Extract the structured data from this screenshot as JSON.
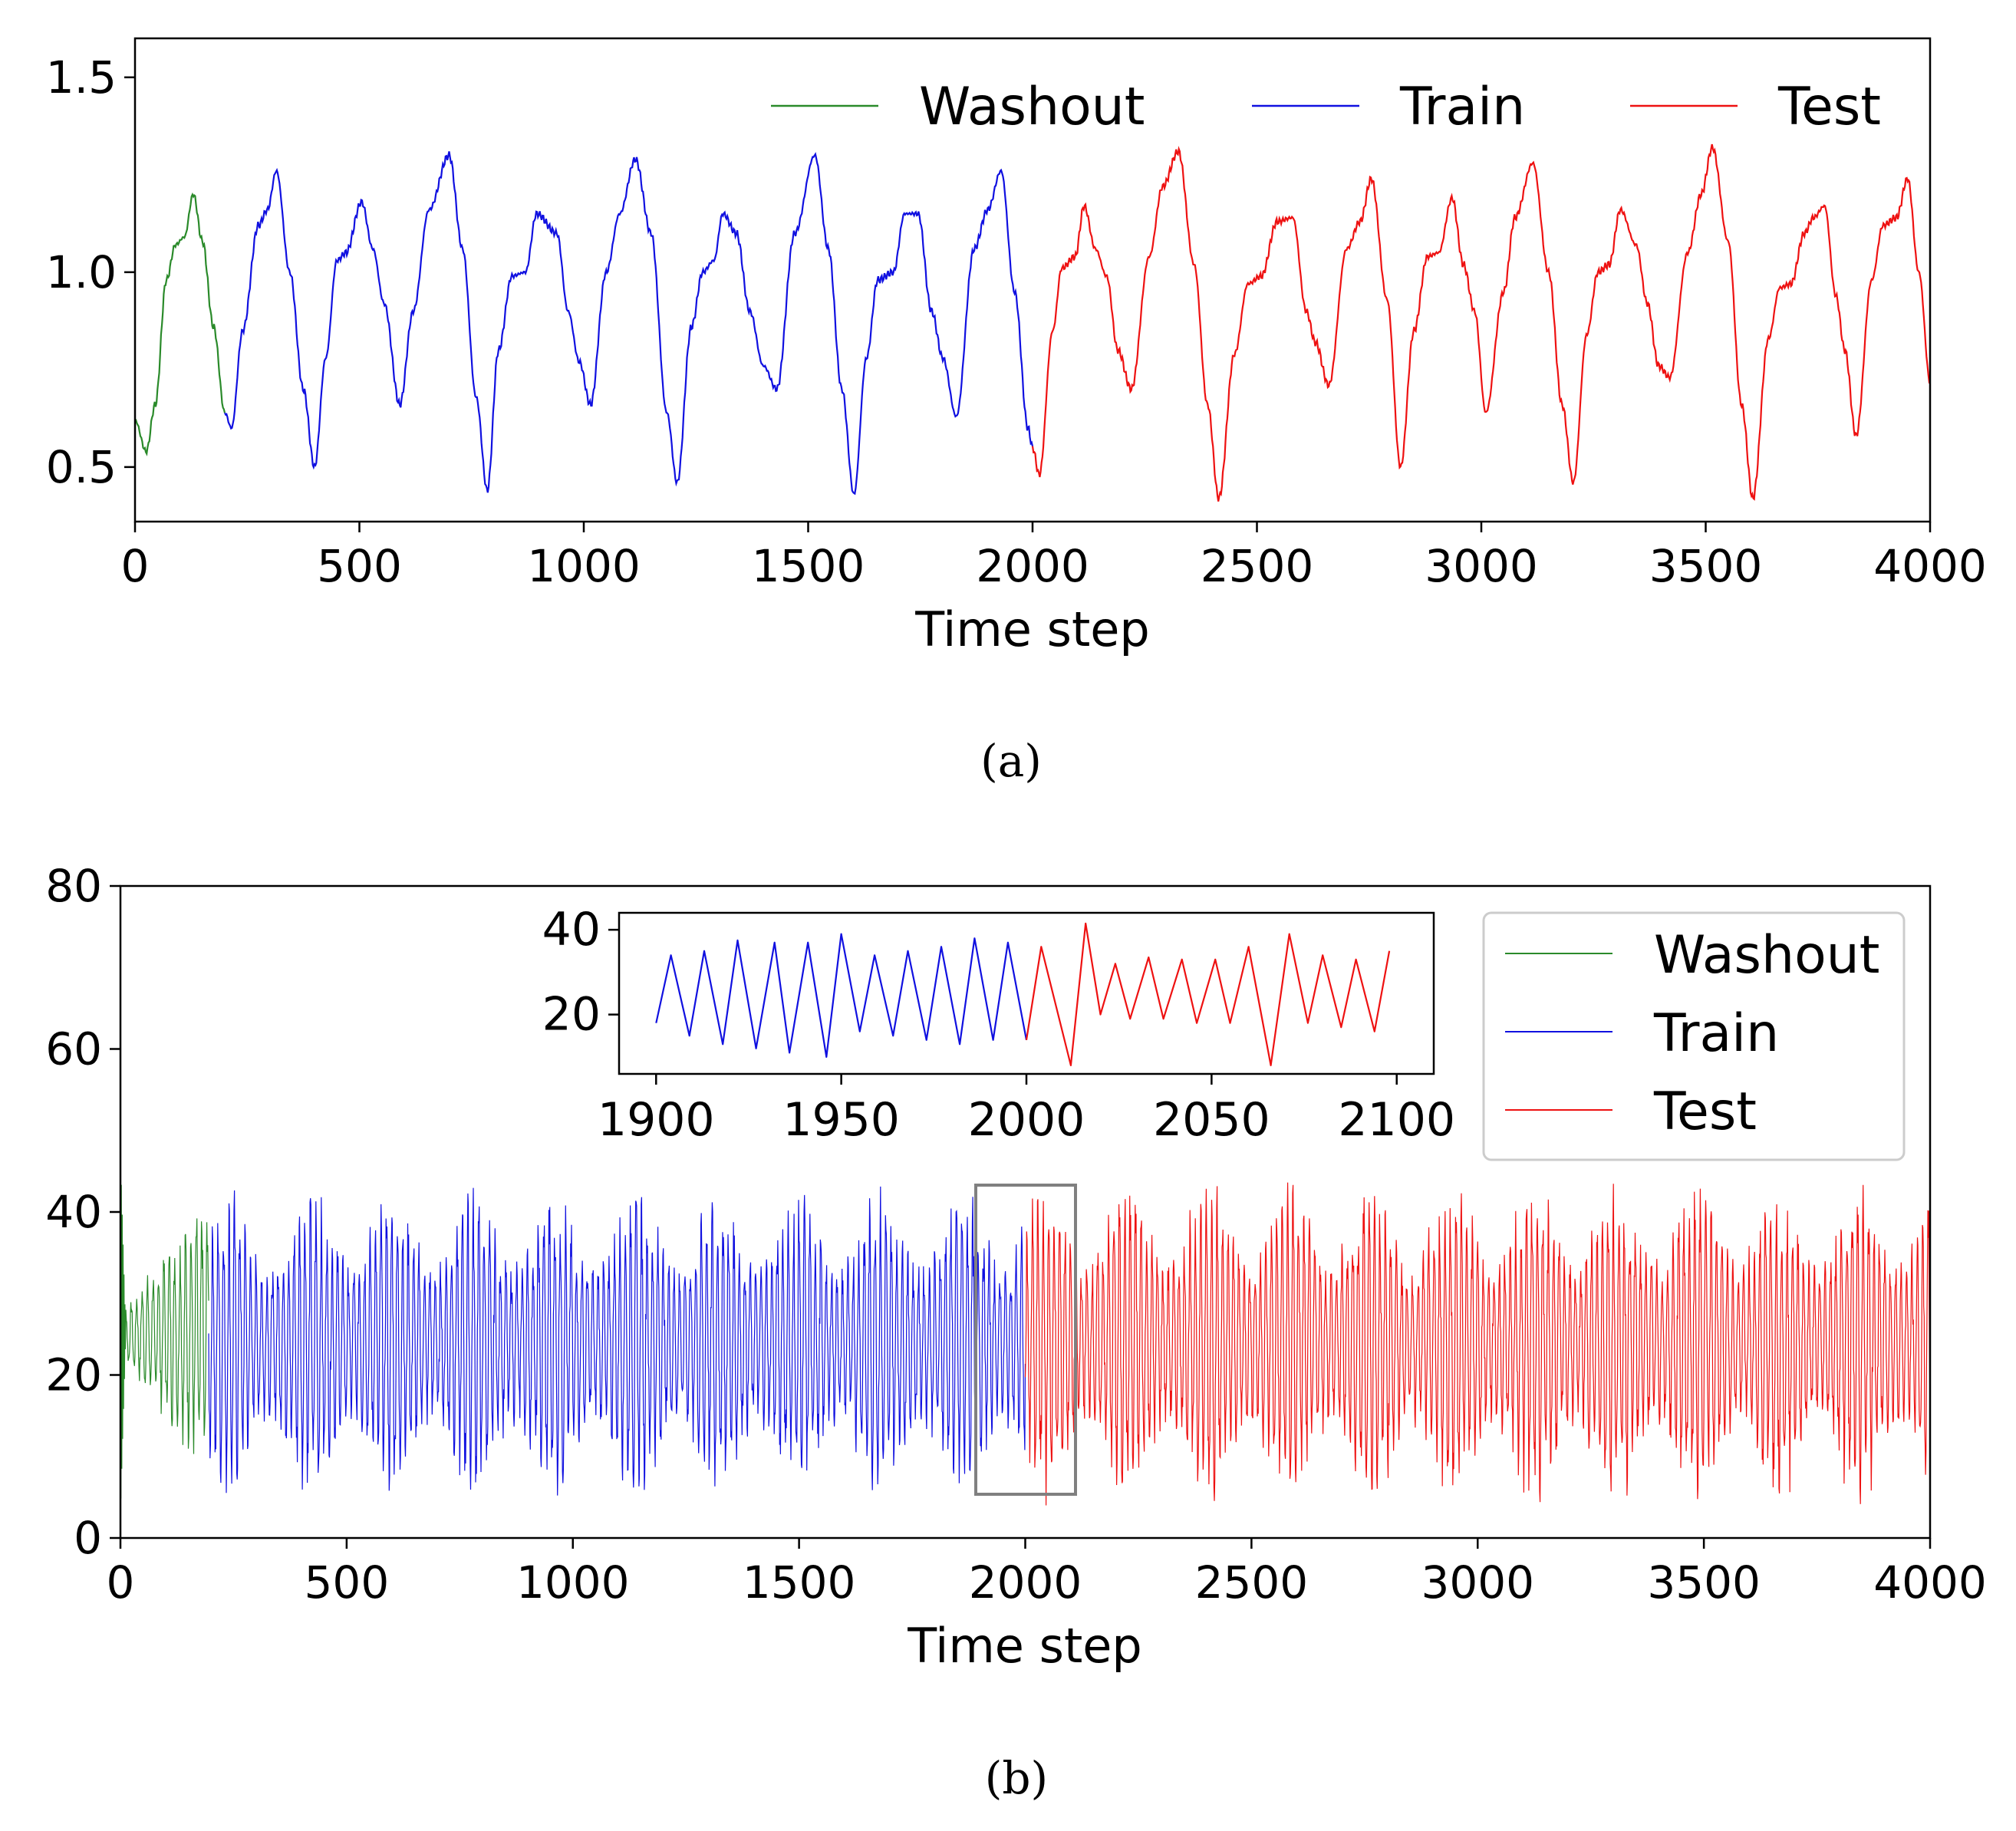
{
  "captions": {
    "a": "(a)",
    "b": "(b)"
  },
  "colors": {
    "washout": "#2a8a2a",
    "train": "#1010e0",
    "test": "#ee1111",
    "zoom_box": "#808080"
  },
  "chart_data": [
    {
      "id": "a",
      "type": "line",
      "xlabel": "Time step",
      "ylabel": "",
      "xlim": [
        0,
        4000
      ],
      "ylim": [
        0.36,
        1.6
      ],
      "xticks": [
        0,
        500,
        1000,
        1500,
        2000,
        2500,
        3000,
        3500,
        4000
      ],
      "xtick_labels": [
        "0",
        "500",
        "1000",
        "1500",
        "2000",
        "2500",
        "3000",
        "3500",
        "4000"
      ],
      "yticks": [
        0.5,
        1.0,
        1.5
      ],
      "ytick_labels": [
        "0.5",
        "1.0",
        "1.5"
      ],
      "legend": {
        "placement": "top-right",
        "columns": 3,
        "entries": [
          "Washout",
          "Train",
          "Test"
        ]
      },
      "series": [
        {
          "name": "Washout",
          "x_range": [
            0,
            200
          ],
          "keypoints": [
            [
              0,
              0.62
            ],
            [
              25,
              0.54
            ],
            [
              45,
              0.66
            ],
            [
              70,
              0.98
            ],
            [
              90,
              1.07
            ],
            [
              110,
              1.09
            ],
            [
              130,
              1.2
            ],
            [
              150,
              1.08
            ],
            [
              175,
              0.86
            ],
            [
              200,
              0.64
            ]
          ]
        },
        {
          "name": "Train",
          "x_range": [
            200,
            2000
          ],
          "keypoints": [
            [
              200,
              0.64
            ],
            [
              215,
              0.6
            ],
            [
              240,
              0.85
            ],
            [
              275,
              1.12
            ],
            [
              295,
              1.16
            ],
            [
              315,
              1.26
            ],
            [
              345,
              1.0
            ],
            [
              375,
              0.7
            ],
            [
              400,
              0.5
            ],
            [
              425,
              0.78
            ],
            [
              450,
              1.03
            ],
            [
              470,
              1.05
            ],
            [
              505,
              1.18
            ],
            [
              530,
              1.06
            ],
            [
              555,
              0.92
            ],
            [
              590,
              0.66
            ],
            [
              620,
              0.9
            ],
            [
              655,
              1.16
            ],
            [
              700,
              1.3
            ],
            [
              730,
              1.06
            ],
            [
              760,
              0.68
            ],
            [
              785,
              0.44
            ],
            [
              810,
              0.8
            ],
            [
              840,
              0.99
            ],
            [
              870,
              1.0
            ],
            [
              895,
              1.15
            ],
            [
              940,
              1.1
            ],
            [
              965,
              0.9
            ],
            [
              990,
              0.77
            ],
            [
              1015,
              0.66
            ],
            [
              1050,
              1.0
            ],
            [
              1080,
              1.15
            ],
            [
              1115,
              1.29
            ],
            [
              1150,
              1.1
            ],
            [
              1185,
              0.64
            ],
            [
              1208,
              0.46
            ],
            [
              1240,
              0.86
            ],
            [
              1265,
              1.0
            ],
            [
              1290,
              1.03
            ],
            [
              1310,
              1.15
            ],
            [
              1340,
              1.1
            ],
            [
              1370,
              0.9
            ],
            [
              1400,
              0.76
            ],
            [
              1430,
              0.7
            ],
            [
              1470,
              1.1
            ],
            [
              1515,
              1.3
            ],
            [
              1545,
              1.06
            ],
            [
              1575,
              0.7
            ],
            [
              1602,
              0.43
            ],
            [
              1630,
              0.78
            ],
            [
              1655,
              0.98
            ],
            [
              1690,
              1.0
            ],
            [
              1715,
              1.15
            ],
            [
              1745,
              1.15
            ],
            [
              1775,
              0.9
            ],
            [
              1800,
              0.78
            ],
            [
              1830,
              0.63
            ],
            [
              1870,
              1.06
            ],
            [
              1900,
              1.16
            ],
            [
              1930,
              1.26
            ],
            [
              1960,
              0.95
            ],
            [
              1990,
              0.6
            ],
            [
              2000,
              0.55
            ]
          ]
        },
        {
          "name": "Test",
          "x_range": [
            2000,
            4000
          ],
          "keypoints": [
            [
              2000,
              0.55
            ],
            [
              2015,
              0.48
            ],
            [
              2045,
              0.85
            ],
            [
              2065,
              1.01
            ],
            [
              2095,
              1.04
            ],
            [
              2115,
              1.17
            ],
            [
              2140,
              1.06
            ],
            [
              2165,
              0.99
            ],
            [
              2190,
              0.8
            ],
            [
              2220,
              0.7
            ],
            [
              2260,
              1.04
            ],
            [
              2290,
              1.22
            ],
            [
              2325,
              1.31
            ],
            [
              2360,
              1.02
            ],
            [
              2390,
              0.66
            ],
            [
              2415,
              0.42
            ],
            [
              2450,
              0.79
            ],
            [
              2480,
              0.97
            ],
            [
              2510,
              0.99
            ],
            [
              2545,
              1.13
            ],
            [
              2580,
              1.14
            ],
            [
              2610,
              0.9
            ],
            [
              2630,
              0.82
            ],
            [
              2660,
              0.71
            ],
            [
              2700,
              1.06
            ],
            [
              2730,
              1.13
            ],
            [
              2755,
              1.24
            ],
            [
              2790,
              0.93
            ],
            [
              2820,
              0.5
            ],
            [
              2850,
              0.85
            ],
            [
              2880,
              1.04
            ],
            [
              2905,
              1.05
            ],
            [
              2935,
              1.19
            ],
            [
              2960,
              1.02
            ],
            [
              2985,
              0.9
            ],
            [
              3010,
              0.64
            ],
            [
              3050,
              0.95
            ],
            [
              3075,
              1.14
            ],
            [
              3115,
              1.28
            ],
            [
              3150,
              1.0
            ],
            [
              3180,
              0.66
            ],
            [
              3205,
              0.46
            ],
            [
              3235,
              0.84
            ],
            [
              3260,
              1.0
            ],
            [
              3285,
              1.02
            ],
            [
              3310,
              1.16
            ],
            [
              3345,
              1.07
            ],
            [
              3370,
              0.92
            ],
            [
              3395,
              0.76
            ],
            [
              3420,
              0.73
            ],
            [
              3460,
              1.05
            ],
            [
              3490,
              1.2
            ],
            [
              3515,
              1.32
            ],
            [
              3550,
              1.08
            ],
            [
              3580,
              0.66
            ],
            [
              3605,
              0.42
            ],
            [
              3640,
              0.83
            ],
            [
              3665,
              0.96
            ],
            [
              3690,
              0.97
            ],
            [
              3720,
              1.1
            ],
            [
              3740,
              1.14
            ],
            [
              3765,
              1.17
            ],
            [
              3790,
              0.94
            ],
            [
              3810,
              0.8
            ],
            [
              3835,
              0.58
            ],
            [
              3870,
              0.98
            ],
            [
              3895,
              1.12
            ],
            [
              3925,
              1.14
            ],
            [
              3950,
              1.24
            ],
            [
              3975,
              1.0
            ],
            [
              4000,
              0.72
            ]
          ]
        }
      ]
    },
    {
      "id": "b",
      "type": "line",
      "xlabel": "Time step",
      "ylabel": "",
      "xlim": [
        0,
        4000
      ],
      "ylim": [
        0,
        80
      ],
      "xticks": [
        0,
        500,
        1000,
        1500,
        2000,
        2500,
        3000,
        3500,
        4000
      ],
      "xtick_labels": [
        "0",
        "500",
        "1000",
        "1500",
        "2000",
        "2500",
        "3000",
        "3500",
        "4000"
      ],
      "yticks": [
        0,
        20,
        40,
        60,
        80
      ],
      "ytick_labels": [
        "0",
        "20",
        "40",
        "60",
        "80"
      ],
      "legend": {
        "placement": "top-right",
        "columns": 1,
        "entries": [
          "Washout",
          "Train",
          "Test"
        ]
      },
      "oscillation_period": 12,
      "series": [
        {
          "name": "Washout",
          "x_range": [
            0,
            195
          ],
          "center": 25,
          "amplitude_range": [
            2,
            14
          ]
        },
        {
          "name": "Train",
          "x_range": [
            195,
            2000
          ],
          "center": 24,
          "amplitude_range": [
            8,
            15
          ]
        },
        {
          "name": "Test",
          "x_range": [
            2000,
            4000
          ],
          "center": 24,
          "amplitude_range": [
            8,
            16
          ]
        }
      ],
      "zoom_box": {
        "x_range": [
          1890,
          2115
        ],
        "y_range": [
          6,
          43.5
        ]
      },
      "inset": {
        "xlim": [
          1890,
          2110
        ],
        "ylim": [
          6,
          44
        ],
        "xticks": [
          1900,
          1950,
          2000,
          2050,
          2100
        ],
        "xtick_labels": [
          "1900",
          "1950",
          "2000",
          "2050",
          "2100"
        ],
        "yticks": [
          20,
          40
        ],
        "ytick_labels": [
          "20",
          "40"
        ],
        "series": [
          {
            "name": "Train",
            "x_range": [
              1900,
              2000
            ],
            "peaks": [
              [
                1904,
                34
              ],
              [
                1913,
                35
              ],
              [
                1922,
                37.5
              ],
              [
                1932,
                37
              ],
              [
                1941,
                37
              ],
              [
                1950,
                39
              ],
              [
                1959,
                34
              ],
              [
                1968,
                35
              ],
              [
                1977,
                36
              ],
              [
                1986,
                38
              ],
              [
                1995,
                37
              ]
            ],
            "troughs": [
              [
                1900,
                18
              ],
              [
                1909,
                15
              ],
              [
                1918,
                13
              ],
              [
                1927,
                12
              ],
              [
                1936,
                11
              ],
              [
                1946,
                10
              ],
              [
                1955,
                16
              ],
              [
                1964,
                15
              ],
              [
                1973,
                14
              ],
              [
                1982,
                13
              ],
              [
                1991,
                14
              ],
              [
                2000,
                14
              ]
            ]
          },
          {
            "name": "Test",
            "x_range": [
              2000,
              2098
            ],
            "peaks": [
              [
                2004,
                36
              ],
              [
                2016,
                41.5
              ],
              [
                2024,
                32
              ],
              [
                2033,
                33.5
              ],
              [
                2042,
                33
              ],
              [
                2051,
                33
              ],
              [
                2060,
                36
              ],
              [
                2071,
                39
              ],
              [
                2080,
                34
              ],
              [
                2089,
                33
              ],
              [
                2098,
                35
              ]
            ],
            "troughs": [
              [
                2000,
                14
              ],
              [
                2012,
                8
              ],
              [
                2020,
                20
              ],
              [
                2028,
                19
              ],
              [
                2037,
                19
              ],
              [
                2046,
                18
              ],
              [
                2055,
                18
              ],
              [
                2066,
                8
              ],
              [
                2076,
                18
              ],
              [
                2085,
                17
              ],
              [
                2094,
                16
              ]
            ]
          }
        ]
      }
    }
  ]
}
